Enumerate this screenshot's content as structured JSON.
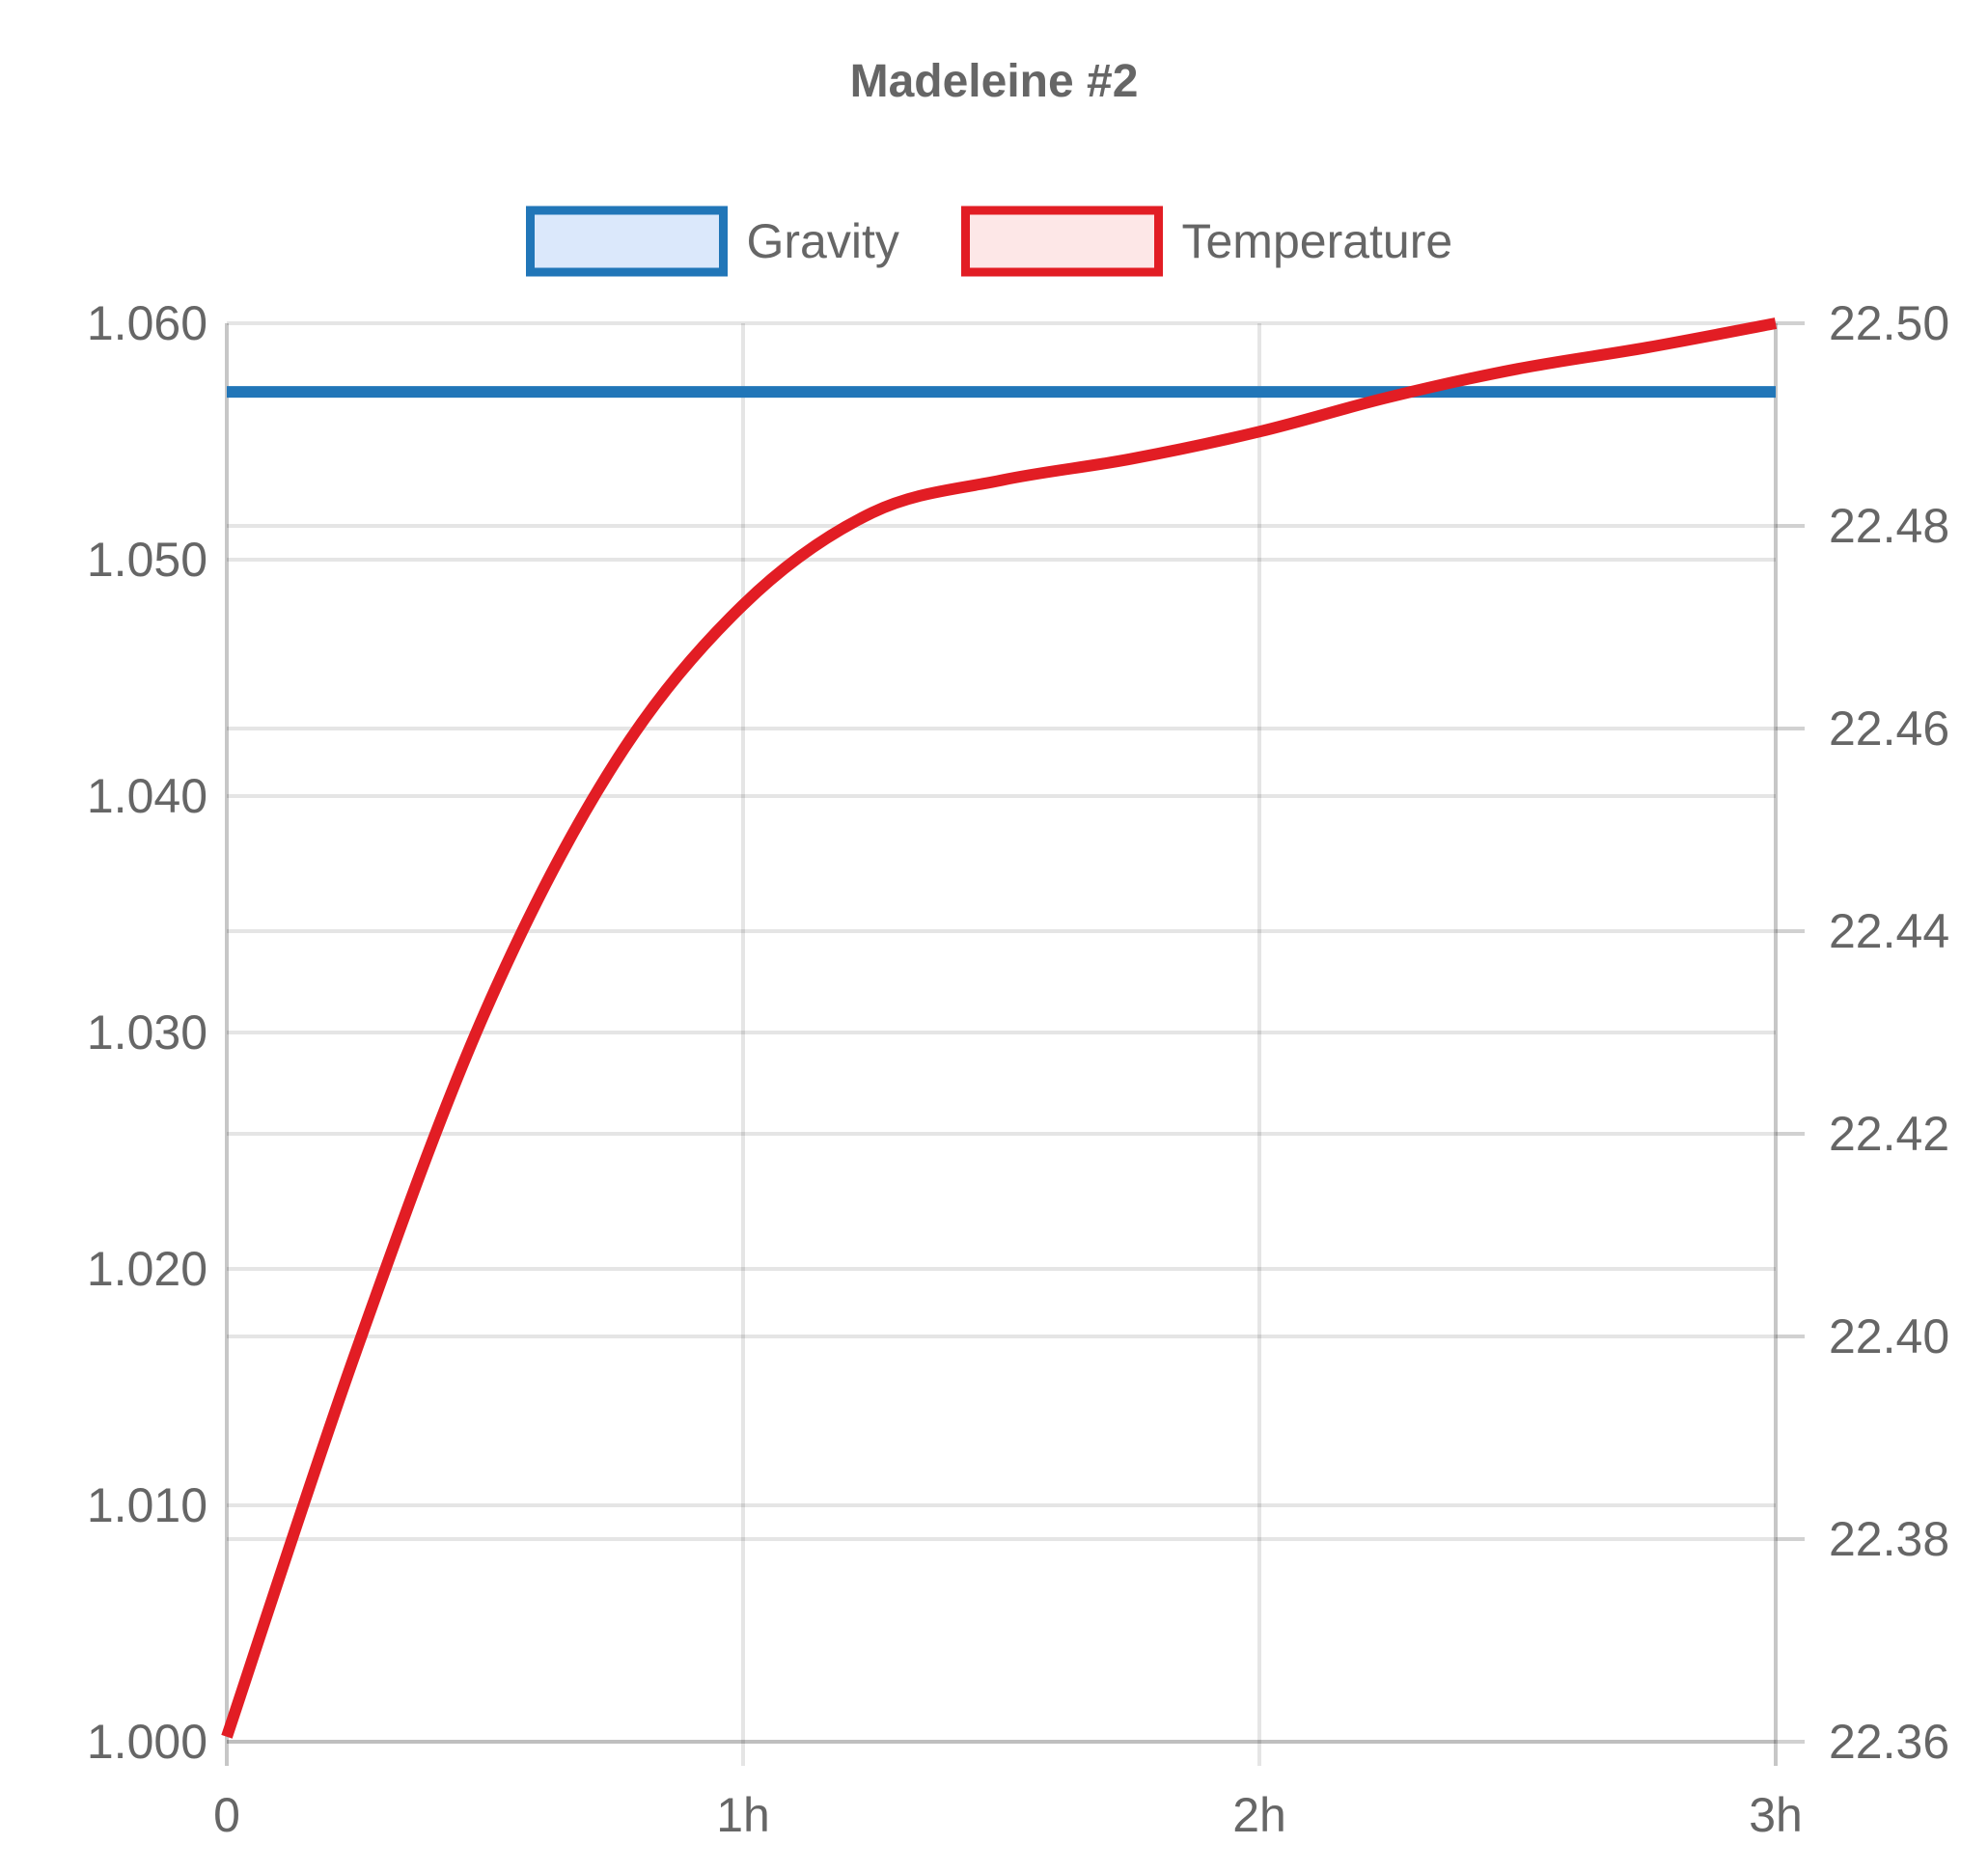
{
  "chart_data": {
    "type": "line",
    "title": "Madeleine #2",
    "legend_position": "top-center",
    "grid": true,
    "x_axis": {
      "ticks": [
        "0",
        "1h",
        "2h",
        "3h"
      ],
      "tick_values_hours": [
        0,
        1,
        2,
        3
      ],
      "range_hours": [
        0,
        3
      ]
    },
    "y_left": {
      "ticks": [
        "1.000",
        "1.010",
        "1.020",
        "1.030",
        "1.040",
        "1.050",
        "1.060"
      ],
      "range": [
        1.0,
        1.06
      ]
    },
    "y_right": {
      "ticks": [
        "22.36",
        "22.38",
        "22.40",
        "22.42",
        "22.44",
        "22.46",
        "22.48",
        "22.50"
      ],
      "range": [
        22.36,
        22.5
      ]
    },
    "series": [
      {
        "name": "Gravity",
        "axis": "left",
        "color": "#2176b8",
        "fill": "#dbe8fb",
        "points": [
          {
            "x": 0,
            "y": 1.0571
          },
          {
            "x": 3,
            "y": 1.0571
          }
        ]
      },
      {
        "name": "Temperature",
        "axis": "right",
        "color": "#e21d24",
        "fill": "#fde7e7",
        "points": [
          {
            "x": 0.0,
            "y": 22.3605
          },
          {
            "x": 0.25,
            "y": 22.3985
          },
          {
            "x": 0.5,
            "y": 22.432
          },
          {
            "x": 0.75,
            "y": 22.4565
          },
          {
            "x": 1.0,
            "y": 22.4722
          },
          {
            "x": 1.25,
            "y": 22.4813
          },
          {
            "x": 1.5,
            "y": 22.4845
          },
          {
            "x": 1.75,
            "y": 22.4866
          },
          {
            "x": 2.0,
            "y": 22.4893
          },
          {
            "x": 2.25,
            "y": 22.4927
          },
          {
            "x": 2.5,
            "y": 22.4955
          },
          {
            "x": 2.75,
            "y": 22.4976
          },
          {
            "x": 3.0,
            "y": 22.5
          }
        ]
      }
    ]
  }
}
